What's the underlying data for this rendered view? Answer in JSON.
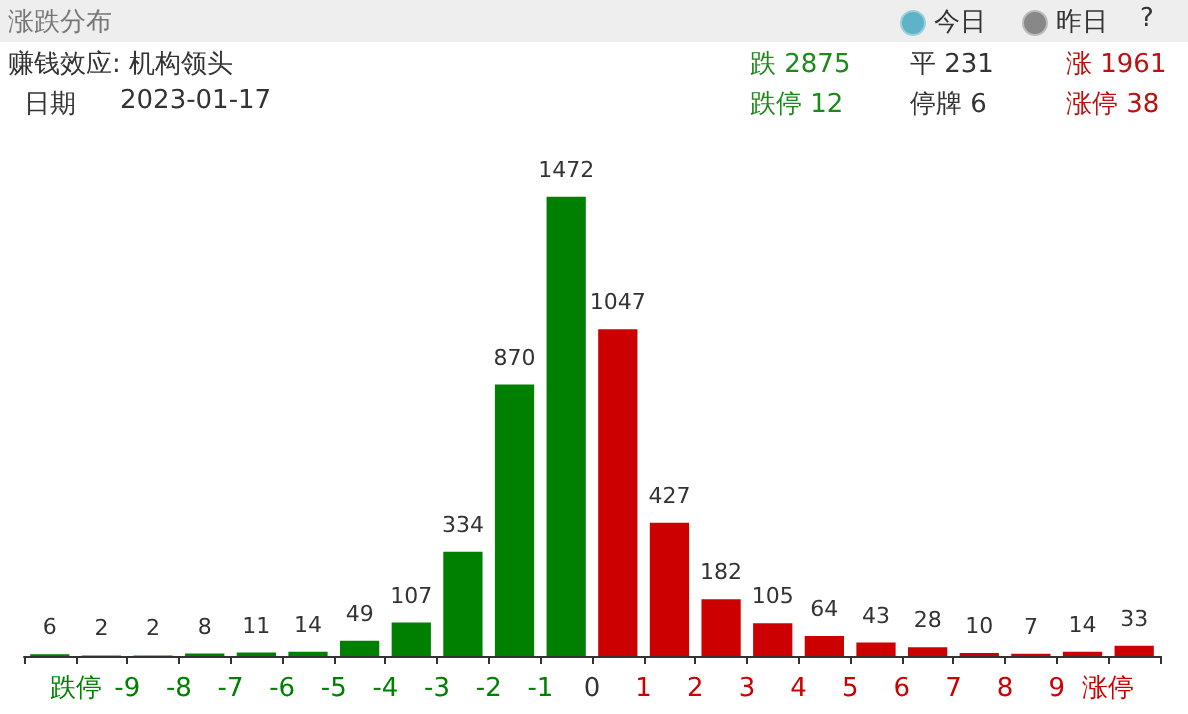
{
  "chart_data": {
    "type": "bar",
    "title": "涨跌分布",
    "annotations": [
      "今日",
      "昨日",
      "?",
      "赚钱效应: 机构领头",
      "日期",
      "2023-01-17",
      "跌 2875",
      "平 231",
      "涨 1961",
      "跌停 12",
      "停牌 6",
      "涨停 38"
    ],
    "x": [
      -10.5,
      -9.5,
      -8.5,
      -7.5,
      -6.5,
      -5.5,
      -4.5,
      -3.5,
      -2.5,
      -1.5,
      -0.5,
      0.5,
      1.5,
      2.5,
      3.5,
      4.5,
      5.5,
      6.5,
      7.5,
      8.5,
      9.5,
      10.5
    ],
    "values": [
      6,
      2,
      2,
      8,
      11,
      14,
      49,
      107,
      334,
      870,
      1472,
      1047,
      427,
      182,
      105,
      64,
      43,
      28,
      10,
      7,
      14,
      33
    ],
    "colors": [
      "#008000",
      "#008000",
      "#008000",
      "#008000",
      "#008000",
      "#008000",
      "#008000",
      "#008000",
      "#008000",
      "#008000",
      "#008000",
      "#cc0000",
      "#cc0000",
      "#cc0000",
      "#cc0000",
      "#cc0000",
      "#cc0000",
      "#cc0000",
      "#cc0000",
      "#cc0000",
      "#cc0000",
      "#cc0000"
    ],
    "xlim": [
      -11,
      11
    ],
    "xticks": [
      {
        "value": -11,
        "label": null
      },
      {
        "value": -10,
        "label": "跌停"
      },
      -9,
      -8,
      -7,
      -6,
      -5,
      -4,
      -3,
      -2,
      -1,
      0,
      1,
      2,
      3,
      4,
      5,
      6,
      7,
      8,
      9,
      {
        "value": 10,
        "label": "涨停"
      },
      {
        "value": 11,
        "label": null
      }
    ],
    "data_labels": true,
    "grid": false
  }
}
